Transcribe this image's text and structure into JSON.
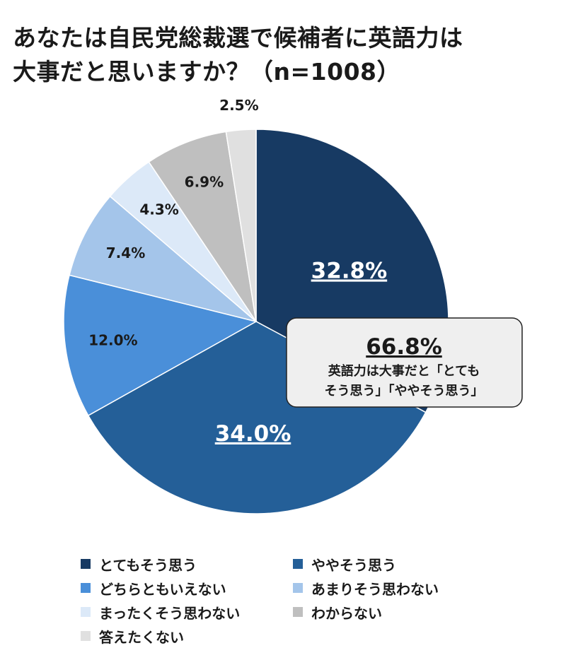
{
  "colors": {
    "series": [
      "#173a63",
      "#245f98",
      "#4a8fd9",
      "#a4c5ea",
      "#dce9f8",
      "#bfbfbf",
      "#e0e0e0"
    ],
    "callout_bg": "#efefef",
    "callout_border": "#222222"
  },
  "chart_data": {
    "type": "pie",
    "title_lines": [
      "あなたは自民党総裁選で候補者に英語力は",
      "大事だと思いますか？（n=1008）"
    ],
    "slices": [
      {
        "label": "とてもそう思う",
        "value": 32.8,
        "text": "32.8%"
      },
      {
        "label": "ややそう思う",
        "value": 34.0,
        "text": "34.0%"
      },
      {
        "label": "どちらともいえない",
        "value": 12.0,
        "text": "12.0%"
      },
      {
        "label": "あまりそう思わない",
        "value": 7.4,
        "text": "7.4%"
      },
      {
        "label": "まったくそう思わない",
        "value": 4.3,
        "text": "4.3%"
      },
      {
        "label": "わからない",
        "value": 6.9,
        "text": "6.9%"
      },
      {
        "label": "答えたくない",
        "value": 2.5,
        "text": "2.5%"
      }
    ],
    "start_angle": "12 o'clock",
    "direction": "clockwise",
    "legend_position": "bottom",
    "callout": {
      "value": "66.8%",
      "lines": [
        "英語力は大事だと「とても",
        "そう思う」「ややそう思う」"
      ]
    }
  }
}
